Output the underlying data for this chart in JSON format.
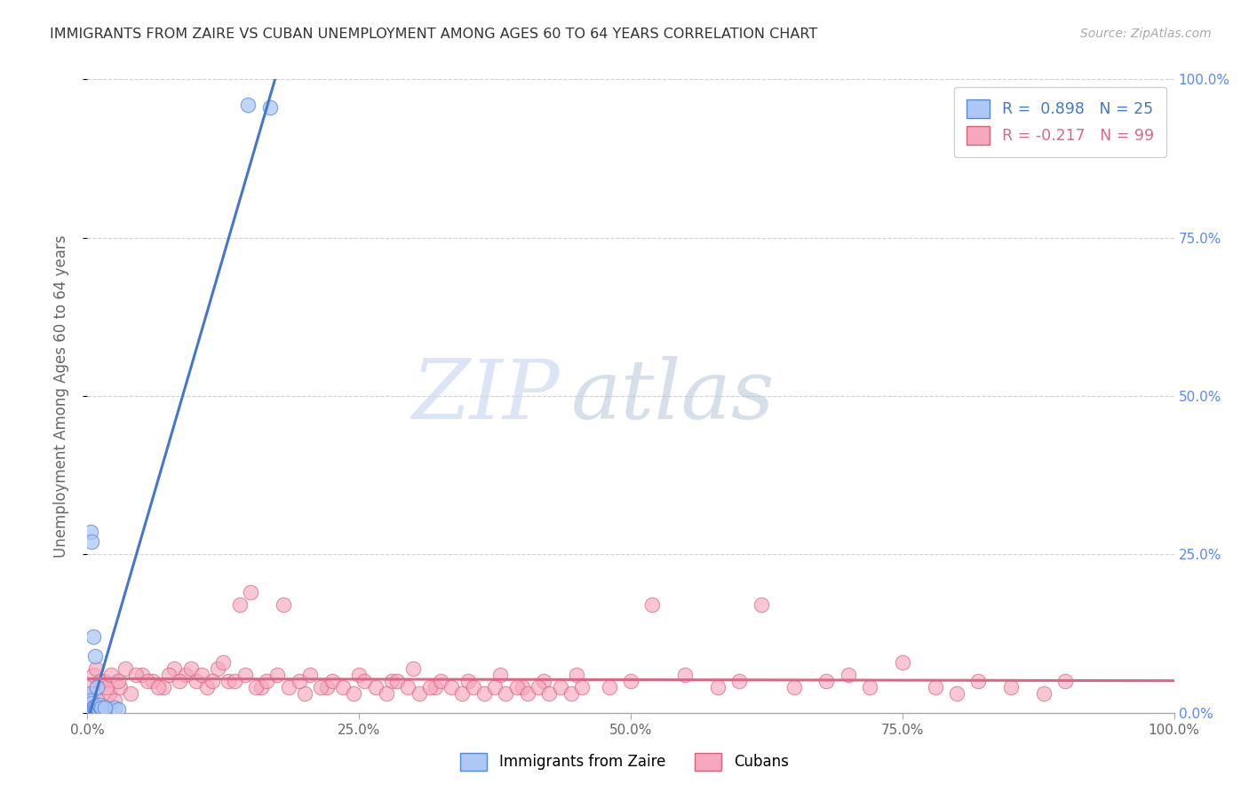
{
  "title": "IMMIGRANTS FROM ZAIRE VS CUBAN UNEMPLOYMENT AMONG AGES 60 TO 64 YEARS CORRELATION CHART",
  "source": "Source: ZipAtlas.com",
  "ylabel": "Unemployment Among Ages 60 to 64 years",
  "xlim": [
    0.0,
    1.0
  ],
  "ylim": [
    0.0,
    1.0
  ],
  "xtick_vals": [
    0.0,
    0.25,
    0.5,
    0.75,
    1.0
  ],
  "xtick_labels": [
    "0.0%",
    "25.0%",
    "50.0%",
    "75.0%",
    "100.0%"
  ],
  "ytick_vals": [
    0.0,
    0.25,
    0.5,
    0.75,
    1.0
  ],
  "right_ytick_labels": [
    "0.0%",
    "25.0%",
    "50.0%",
    "75.0%",
    "100.0%"
  ],
  "zaire_color": "#adc8f5",
  "zaire_edge": "#5588dd",
  "cuban_color": "#f5a8be",
  "cuban_edge": "#d8607a",
  "zaire_line": "#4477cc",
  "cuban_line": "#dd6688",
  "bg_color": "#ffffff",
  "grid_color": "#cccccc",
  "title_color": "#333333",
  "right_axis_color": "#5588ff",
  "watermark_color": "#c8d8f0",
  "watermark_color2": "#b0c0d8",
  "zaire_x": [
    0.002,
    0.003,
    0.004,
    0.005,
    0.006,
    0.007,
    0.008,
    0.009,
    0.01,
    0.012,
    0.015,
    0.018,
    0.02,
    0.025,
    0.028,
    0.003,
    0.004,
    0.005,
    0.007,
    0.009,
    0.011,
    0.013,
    0.016,
    0.148,
    0.168
  ],
  "zaire_y": [
    0.03,
    0.02,
    0.015,
    0.008,
    0.01,
    0.007,
    0.01,
    0.008,
    0.006,
    0.008,
    0.006,
    0.007,
    0.005,
    0.008,
    0.005,
    0.285,
    0.27,
    0.12,
    0.09,
    0.04,
    0.012,
    0.008,
    0.008,
    0.96,
    0.955
  ],
  "cuban_x": [
    0.002,
    0.005,
    0.01,
    0.015,
    0.02,
    0.025,
    0.03,
    0.04,
    0.05,
    0.06,
    0.07,
    0.08,
    0.09,
    0.1,
    0.11,
    0.12,
    0.13,
    0.14,
    0.15,
    0.16,
    0.18,
    0.2,
    0.22,
    0.25,
    0.28,
    0.3,
    0.32,
    0.35,
    0.38,
    0.4,
    0.42,
    0.45,
    0.48,
    0.5,
    0.52,
    0.55,
    0.58,
    0.6,
    0.62,
    0.65,
    0.68,
    0.7,
    0.72,
    0.75,
    0.78,
    0.8,
    0.82,
    0.85,
    0.88,
    0.9,
    0.005,
    0.008,
    0.012,
    0.018,
    0.022,
    0.028,
    0.035,
    0.045,
    0.055,
    0.065,
    0.075,
    0.085,
    0.095,
    0.105,
    0.115,
    0.125,
    0.135,
    0.145,
    0.155,
    0.165,
    0.175,
    0.185,
    0.195,
    0.205,
    0.215,
    0.225,
    0.235,
    0.245,
    0.255,
    0.265,
    0.275,
    0.285,
    0.295,
    0.305,
    0.315,
    0.325,
    0.335,
    0.345,
    0.355,
    0.365,
    0.375,
    0.385,
    0.395,
    0.405,
    0.415,
    0.425,
    0.435,
    0.445,
    0.455
  ],
  "cuban_y": [
    0.04,
    0.03,
    0.02,
    0.05,
    0.03,
    0.02,
    0.04,
    0.03,
    0.06,
    0.05,
    0.04,
    0.07,
    0.06,
    0.05,
    0.04,
    0.07,
    0.05,
    0.17,
    0.19,
    0.04,
    0.17,
    0.03,
    0.04,
    0.06,
    0.05,
    0.07,
    0.04,
    0.05,
    0.06,
    0.04,
    0.05,
    0.06,
    0.04,
    0.05,
    0.17,
    0.06,
    0.04,
    0.05,
    0.17,
    0.04,
    0.05,
    0.06,
    0.04,
    0.08,
    0.04,
    0.03,
    0.05,
    0.04,
    0.03,
    0.05,
    0.06,
    0.07,
    0.05,
    0.04,
    0.06,
    0.05,
    0.07,
    0.06,
    0.05,
    0.04,
    0.06,
    0.05,
    0.07,
    0.06,
    0.05,
    0.08,
    0.05,
    0.06,
    0.04,
    0.05,
    0.06,
    0.04,
    0.05,
    0.06,
    0.04,
    0.05,
    0.04,
    0.03,
    0.05,
    0.04,
    0.03,
    0.05,
    0.04,
    0.03,
    0.04,
    0.05,
    0.04,
    0.03,
    0.04,
    0.03,
    0.04,
    0.03,
    0.04,
    0.03,
    0.04,
    0.03,
    0.04,
    0.03,
    0.04
  ]
}
